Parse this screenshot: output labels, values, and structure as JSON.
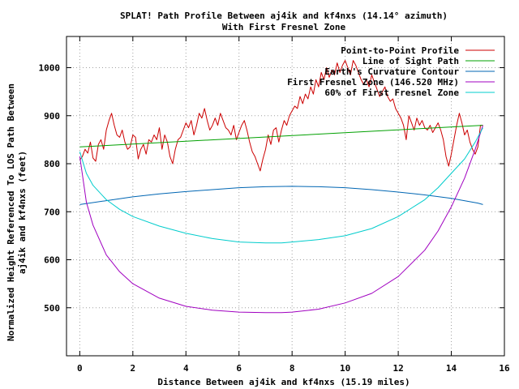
{
  "chart_data": {
    "type": "line",
    "title": "SPLAT! Path Profile Between aj4ik and kf4nxs (14.14° azimuth)",
    "subtitle": "With First Fresnel Zone",
    "xlabel": "Distance Between aj4ik and kf4nxs (15.19 miles)",
    "ylabel_line1": "Normalized Height Referenced To LOS Path Between",
    "ylabel_line2": "aj4ik and kf4nxs (feet)",
    "xlim": [
      -0.5,
      16
    ],
    "ylim": [
      400,
      1065
    ],
    "x_ticks": [
      0,
      2,
      4,
      6,
      8,
      10,
      12,
      14,
      16
    ],
    "x_tick_labels": [
      "0",
      "2",
      "4",
      "6",
      "8",
      "10",
      "12",
      "14",
      "16"
    ],
    "y_ticks": [
      500,
      600,
      700,
      800,
      900,
      1000
    ],
    "y_tick_labels": [
      "500",
      "600",
      "700",
      "800",
      "900",
      "1000"
    ],
    "grid": true,
    "legend_position": "top-right",
    "series": [
      {
        "name": "Point-to-Point Profile",
        "color": "#cc0000",
        "x": [
          0,
          0.1,
          0.2,
          0.3,
          0.4,
          0.5,
          0.6,
          0.7,
          0.8,
          0.9,
          1.0,
          1.1,
          1.2,
          1.3,
          1.4,
          1.5,
          1.6,
          1.7,
          1.8,
          1.9,
          2.0,
          2.1,
          2.2,
          2.3,
          2.4,
          2.5,
          2.6,
          2.7,
          2.8,
          2.9,
          3.0,
          3.1,
          3.2,
          3.3,
          3.4,
          3.5,
          3.6,
          3.7,
          3.8,
          3.9,
          4.0,
          4.1,
          4.2,
          4.3,
          4.4,
          4.5,
          4.6,
          4.7,
          4.8,
          4.9,
          5.0,
          5.1,
          5.2,
          5.3,
          5.4,
          5.5,
          5.6,
          5.7,
          5.8,
          5.9,
          6.0,
          6.1,
          6.2,
          6.3,
          6.4,
          6.5,
          6.6,
          6.7,
          6.8,
          6.9,
          7.0,
          7.1,
          7.2,
          7.3,
          7.4,
          7.5,
          7.6,
          7.7,
          7.8,
          7.9,
          8.0,
          8.1,
          8.2,
          8.3,
          8.4,
          8.5,
          8.6,
          8.7,
          8.8,
          8.9,
          9.0,
          9.1,
          9.2,
          9.3,
          9.4,
          9.5,
          9.6,
          9.7,
          9.8,
          9.9,
          10.0,
          10.1,
          10.2,
          10.3,
          10.4,
          10.5,
          10.6,
          10.7,
          10.8,
          10.9,
          11.0,
          11.1,
          11.2,
          11.3,
          11.4,
          11.5,
          11.6,
          11.7,
          11.8,
          11.9,
          12.0,
          12.1,
          12.2,
          12.3,
          12.4,
          12.5,
          12.6,
          12.7,
          12.8,
          12.9,
          13.0,
          13.1,
          13.2,
          13.3,
          13.4,
          13.5,
          13.6,
          13.7,
          13.8,
          13.9,
          14.0,
          14.1,
          14.2,
          14.3,
          14.4,
          14.5,
          14.6,
          14.7,
          14.8,
          14.9,
          15.0,
          15.1,
          15.19
        ],
        "y": [
          808,
          815,
          830,
          822,
          845,
          812,
          805,
          840,
          850,
          830,
          870,
          890,
          905,
          880,
          860,
          855,
          870,
          845,
          830,
          835,
          860,
          855,
          810,
          830,
          840,
          820,
          850,
          845,
          860,
          850,
          875,
          830,
          860,
          845,
          815,
          800,
          830,
          850,
          855,
          870,
          885,
          875,
          890,
          860,
          880,
          905,
          895,
          915,
          890,
          870,
          880,
          895,
          880,
          905,
          890,
          875,
          870,
          860,
          880,
          850,
          865,
          880,
          890,
          870,
          845,
          825,
          815,
          800,
          785,
          810,
          830,
          860,
          840,
          870,
          875,
          845,
          870,
          890,
          880,
          900,
          910,
          920,
          915,
          940,
          925,
          945,
          935,
          960,
          945,
          975,
          960,
          990,
          975,
          1000,
          980,
          995,
          985,
          1010,
          990,
          1005,
          1015,
          1000,
          985,
          1015,
          1005,
          990,
          975,
          965,
          975,
          960,
          985,
          970,
          955,
          940,
          950,
          960,
          940,
          930,
          935,
          915,
          905,
          895,
          880,
          850,
          900,
          885,
          870,
          895,
          880,
          890,
          875,
          870,
          880,
          865,
          875,
          885,
          870,
          850,
          815,
          795,
          820,
          850,
          880,
          905,
          885,
          860,
          870,
          845,
          830,
          820,
          835,
          880,
          880
        ]
      },
      {
        "name": "Line of Sight Path",
        "color": "#00a000",
        "x": [
          0,
          15.19
        ],
        "y": [
          835,
          880
        ]
      },
      {
        "name": "Earth's Curvature Contour",
        "color": "#0066b3",
        "x": [
          0,
          1,
          2,
          3,
          4,
          5,
          6,
          7,
          8,
          9,
          10,
          11,
          12,
          13,
          14,
          15,
          15.19
        ],
        "y": [
          715,
          723,
          731,
          737,
          742,
          746,
          750,
          752,
          753,
          752,
          750,
          746,
          741,
          735,
          728,
          718,
          715
        ]
      },
      {
        "name": "First Fresnel Zone (146.520 MHz)",
        "color": "#a000c0",
        "x": [
          0,
          0.25,
          0.5,
          1,
          1.5,
          2,
          3,
          4,
          5,
          6,
          7,
          7.6,
          8,
          9,
          10,
          11,
          12,
          13,
          13.5,
          14,
          14.5,
          14.9,
          15.19
        ],
        "y": [
          815,
          720,
          672,
          610,
          575,
          550,
          520,
          503,
          495,
          491,
          490,
          490,
          491,
          497,
          510,
          530,
          565,
          620,
          660,
          710,
          770,
          830,
          880
        ]
      },
      {
        "name": "60% of First Fresnel Zone",
        "color": "#00cccc",
        "x": [
          0,
          0.25,
          0.5,
          1,
          1.5,
          2,
          3,
          4,
          5,
          6,
          7,
          7.6,
          8,
          9,
          10,
          11,
          12,
          13,
          13.5,
          14,
          14.5,
          14.9,
          15.19
        ],
        "y": [
          825,
          780,
          755,
          725,
          705,
          690,
          670,
          655,
          644,
          637,
          635,
          635,
          637,
          642,
          650,
          665,
          690,
          725,
          750,
          780,
          810,
          845,
          875
        ]
      }
    ]
  }
}
